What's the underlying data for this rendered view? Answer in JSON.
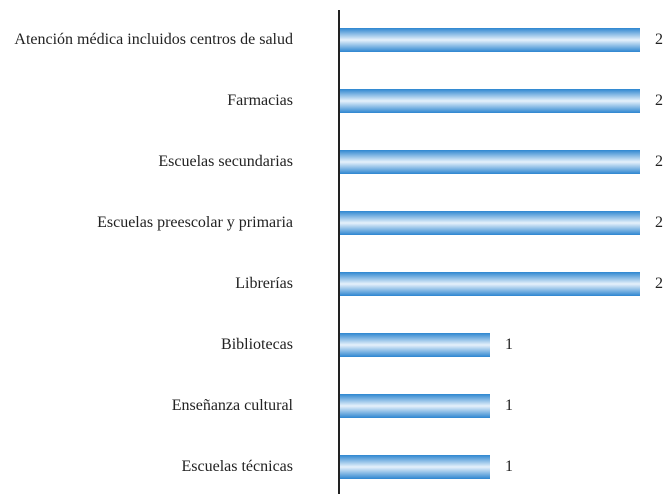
{
  "chart_data": {
    "type": "bar",
    "orientation": "horizontal",
    "categories": [
      "Atención médica incluidos centros de salud",
      "Farmacias",
      "Escuelas secundarias",
      "Escuelas preescolar y primaria",
      "Librerías",
      "Bibliotecas",
      "Enseñanza cultural",
      "Escuelas técnicas"
    ],
    "values": [
      2,
      2,
      2,
      2,
      2,
      1,
      1,
      1
    ],
    "color": "#2d86d0"
  }
}
